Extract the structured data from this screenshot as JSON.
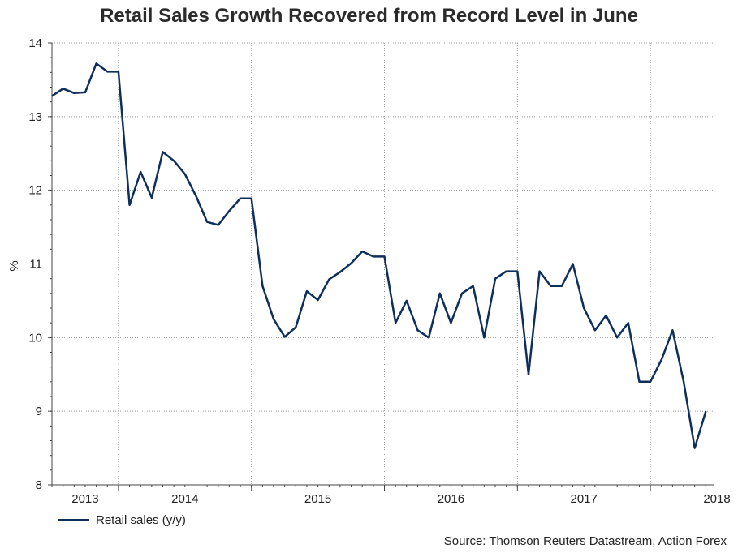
{
  "chart_data": {
    "type": "line",
    "title": "Retail Sales Growth Recovered from Record Level in June",
    "ylabel": "%",
    "xlabel": "",
    "ylim": [
      8,
      14
    ],
    "yticks": [
      "8",
      "9",
      "10",
      "11",
      "12",
      "13",
      "14"
    ],
    "xticks": [
      "2013",
      "2014",
      "2015",
      "2016",
      "2017",
      "2018"
    ],
    "x_start": "2013-01",
    "series": [
      {
        "name": "Retail sales (y/y)",
        "color": "#0e2f5c",
        "values": [
          13.28,
          13.38,
          13.32,
          13.33,
          13.72,
          13.61,
          13.61,
          11.8,
          12.25,
          11.9,
          12.52,
          12.4,
          12.22,
          11.92,
          11.57,
          11.53,
          11.72,
          11.89,
          11.89,
          10.7,
          10.25,
          10.01,
          10.14,
          10.63,
          10.51,
          10.79,
          10.89,
          11.01,
          11.17,
          11.1,
          11.1,
          10.2,
          10.5,
          10.1,
          10.0,
          10.6,
          10.2,
          10.6,
          10.7,
          10.0,
          10.8,
          10.9,
          10.9,
          9.5,
          10.9,
          10.7,
          10.7,
          11.0,
          10.4,
          10.1,
          10.3,
          10.0,
          10.2,
          9.4,
          9.4,
          9.7,
          10.1,
          9.4,
          8.5,
          9.0
        ]
      }
    ]
  },
  "legend": {
    "label": "Retail sales (y/y)"
  },
  "source": "Source: Thomson Reuters Datastream, Action Forex"
}
